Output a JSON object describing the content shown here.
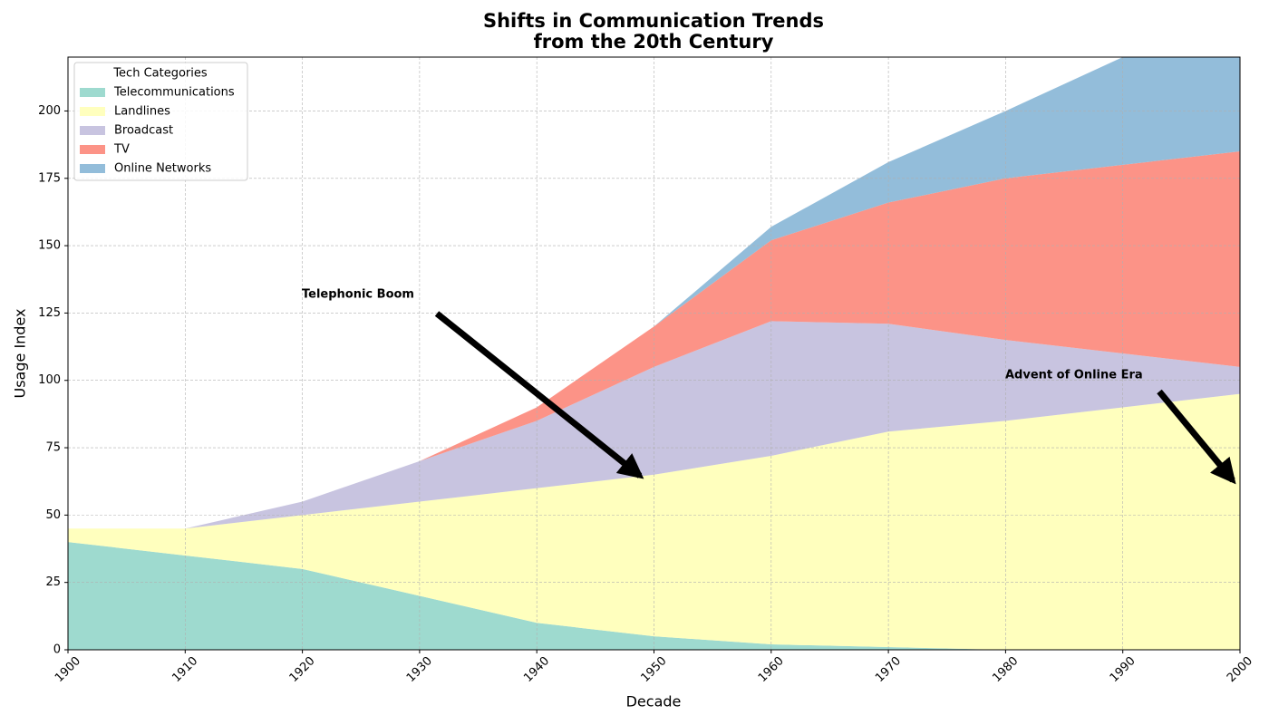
{
  "chart_data": {
    "type": "stacked_area",
    "title": [
      "Shifts in Communication Trends",
      "from the 20th Century"
    ],
    "xlabel": "Decade",
    "ylabel": "Usage Index",
    "x": [
      1900,
      1910,
      1920,
      1930,
      1940,
      1950,
      1960,
      1970,
      1980,
      1990,
      2000
    ],
    "series": [
      {
        "name": "Telecommunications",
        "color": "#8dd3c7",
        "values": [
          40,
          35,
          30,
          20,
          10,
          5,
          2,
          1,
          0,
          0,
          0
        ]
      },
      {
        "name": "Landlines",
        "color": "#ffffb3",
        "values": [
          5,
          10,
          20,
          35,
          50,
          60,
          70,
          80,
          85,
          90,
          95
        ]
      },
      {
        "name": "Broadcast",
        "color": "#bebada",
        "values": [
          0,
          0,
          5,
          15,
          25,
          40,
          50,
          40,
          30,
          20,
          10
        ]
      },
      {
        "name": "TV",
        "color": "#fb8072",
        "values": [
          0,
          0,
          0,
          0,
          5,
          15,
          30,
          45,
          60,
          70,
          80
        ]
      },
      {
        "name": "Online Networks",
        "color": "#80b1d3",
        "values": [
          0,
          0,
          0,
          0,
          0,
          0,
          5,
          15,
          25,
          40,
          40
        ]
      }
    ],
    "xlim": [
      1900,
      2000
    ],
    "xticks": [
      1900,
      1910,
      1920,
      1930,
      1940,
      1950,
      1960,
      1970,
      1980,
      1990,
      2000
    ],
    "ylim": [
      0,
      220
    ],
    "yticks": [
      0,
      25,
      50,
      75,
      100,
      125,
      150,
      175,
      200
    ],
    "grid": true,
    "legend": {
      "title": "Tech Categories",
      "position": "upper left"
    },
    "annotations": [
      "Telephonic Boom",
      "Advent of Online Era"
    ]
  }
}
